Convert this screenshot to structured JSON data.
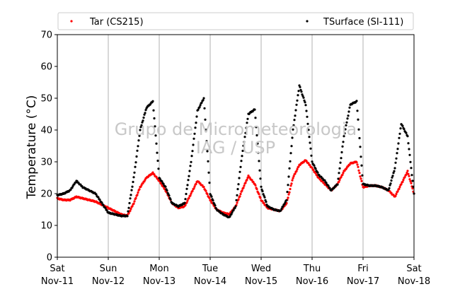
{
  "chart_data": {
    "type": "scatter",
    "title": "",
    "xlabel": "",
    "ylabel": "Temperature (°C)",
    "xlim": [
      "2017-11-11T00:00",
      "2017-11-18T00:00"
    ],
    "ylim": [
      0,
      70
    ],
    "yticks": [
      0,
      10,
      20,
      30,
      40,
      50,
      60,
      70
    ],
    "xticks": [
      {
        "x": "2017-11-11T00:00",
        "day": "Sat",
        "date": "Nov-11"
      },
      {
        "x": "2017-11-12T00:00",
        "day": "Sun",
        "date": "Nov-12"
      },
      {
        "x": "2017-11-13T00:00",
        "day": "Mon",
        "date": "Nov-13"
      },
      {
        "x": "2017-11-14T00:00",
        "day": "Tue",
        "date": "Nov-14"
      },
      {
        "x": "2017-11-15T00:00",
        "day": "Wed",
        "date": "Nov-15"
      },
      {
        "x": "2017-11-16T00:00",
        "day": "Thu",
        "date": "Nov-16"
      },
      {
        "x": "2017-11-17T00:00",
        "day": "Fri",
        "date": "Nov-17"
      },
      {
        "x": "2017-11-18T00:00",
        "day": "Sat",
        "date": "Nov-18"
      }
    ],
    "grid": "vertical",
    "legend": "top",
    "watermark": [
      "Grupo de Micrometeorologia",
      "IAG / USP"
    ],
    "series": [
      {
        "name": "Tar (CS215)",
        "color": "#ff0000",
        "x": [
          "2017-11-11T00:00",
          "2017-11-11T03:00",
          "2017-11-11T06:00",
          "2017-11-11T09:00",
          "2017-11-11T12:00",
          "2017-11-11T15:00",
          "2017-11-11T18:00",
          "2017-11-11T21:00",
          "2017-11-12T00:00",
          "2017-11-12T03:00",
          "2017-11-12T06:00",
          "2017-11-12T09:00",
          "2017-11-12T12:00",
          "2017-11-12T15:00",
          "2017-11-12T18:00",
          "2017-11-12T21:00",
          "2017-11-13T00:00",
          "2017-11-13T03:00",
          "2017-11-13T06:00",
          "2017-11-13T09:00",
          "2017-11-13T12:00",
          "2017-11-13T15:00",
          "2017-11-13T18:00",
          "2017-11-13T21:00",
          "2017-11-14T00:00",
          "2017-11-14T03:00",
          "2017-11-14T06:00",
          "2017-11-14T09:00",
          "2017-11-14T12:00",
          "2017-11-14T15:00",
          "2017-11-14T18:00",
          "2017-11-14T21:00",
          "2017-11-15T00:00",
          "2017-11-15T03:00",
          "2017-11-15T06:00",
          "2017-11-15T09:00",
          "2017-11-15T12:00",
          "2017-11-15T15:00",
          "2017-11-15T18:00",
          "2017-11-15T21:00",
          "2017-11-16T00:00",
          "2017-11-16T03:00",
          "2017-11-16T06:00",
          "2017-11-16T09:00",
          "2017-11-16T12:00",
          "2017-11-16T15:00",
          "2017-11-16T18:00",
          "2017-11-16T21:00",
          "2017-11-17T00:00",
          "2017-11-17T03:00",
          "2017-11-17T06:00",
          "2017-11-17T09:00",
          "2017-11-17T12:00",
          "2017-11-17T15:00",
          "2017-11-17T18:00",
          "2017-11-17T21:00",
          "2017-11-18T00:00"
        ],
        "values": [
          18.5,
          18,
          18,
          19,
          18.5,
          18,
          17.5,
          16.5,
          15.5,
          14.5,
          13.5,
          13,
          17,
          22,
          25,
          26.5,
          24,
          21,
          17,
          15.5,
          16,
          20,
          24,
          22,
          18,
          15,
          14,
          13.5,
          16,
          21,
          25.5,
          23,
          18,
          15.5,
          15,
          14.5,
          17,
          25,
          29,
          30.5,
          28,
          25,
          23,
          21,
          23,
          27,
          29.5,
          30,
          22,
          22.5,
          22.5,
          22,
          21,
          19,
          23,
          27,
          20
        ]
      },
      {
        "name": "TSurface (SI-111)",
        "color": "#000000",
        "x": [
          "2017-11-11T00:00",
          "2017-11-11T03:00",
          "2017-11-11T06:00",
          "2017-11-11T09:00",
          "2017-11-11T12:00",
          "2017-11-11T15:00",
          "2017-11-11T18:00",
          "2017-11-11T21:00",
          "2017-11-12T00:00",
          "2017-11-12T03:00",
          "2017-11-12T06:00",
          "2017-11-12T09:00",
          "2017-11-12T12:00",
          "2017-11-12T15:00",
          "2017-11-12T18:00",
          "2017-11-12T21:00",
          "2017-11-13T00:00",
          "2017-11-13T03:00",
          "2017-11-13T06:00",
          "2017-11-13T09:00",
          "2017-11-13T12:00",
          "2017-11-13T15:00",
          "2017-11-13T18:00",
          "2017-11-13T21:00",
          "2017-11-14T00:00",
          "2017-11-14T03:00",
          "2017-11-14T06:00",
          "2017-11-14T09:00",
          "2017-11-14T12:00",
          "2017-11-14T15:00",
          "2017-11-14T18:00",
          "2017-11-14T21:00",
          "2017-11-15T00:00",
          "2017-11-15T03:00",
          "2017-11-15T06:00",
          "2017-11-15T09:00",
          "2017-11-15T12:00",
          "2017-11-15T15:00",
          "2017-11-15T18:00",
          "2017-11-15T21:00",
          "2017-11-16T00:00",
          "2017-11-16T03:00",
          "2017-11-16T06:00",
          "2017-11-16T09:00",
          "2017-11-16T12:00",
          "2017-11-16T15:00",
          "2017-11-16T18:00",
          "2017-11-16T21:00",
          "2017-11-17T00:00",
          "2017-11-17T03:00",
          "2017-11-17T06:00",
          "2017-11-17T09:00",
          "2017-11-17T12:00",
          "2017-11-17T15:00",
          "2017-11-17T18:00",
          "2017-11-17T21:00",
          "2017-11-18T00:00"
        ],
        "values": [
          19.5,
          20,
          21,
          24,
          22,
          21,
          20,
          17,
          14,
          13.5,
          13,
          13,
          25,
          40,
          47,
          49,
          25,
          22,
          17,
          16,
          17,
          30,
          46,
          50,
          20,
          15,
          13.5,
          12.5,
          16,
          32,
          45,
          46.5,
          22,
          16,
          15,
          14.5,
          18,
          40,
          54,
          48,
          30,
          26,
          24,
          21,
          23,
          38,
          48,
          49,
          23,
          22.5,
          22.5,
          22,
          21,
          28,
          42,
          38,
          20
        ]
      }
    ]
  }
}
